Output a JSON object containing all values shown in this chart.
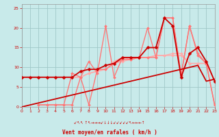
{
  "xlabel": "Vent moyen/en rafales ( km/h )",
  "xlim": [
    0,
    23
  ],
  "ylim": [
    0,
    26
  ],
  "yticks": [
    0,
    5,
    10,
    15,
    20,
    25
  ],
  "xticks": [
    0,
    1,
    2,
    3,
    4,
    5,
    6,
    7,
    8,
    9,
    10,
    11,
    12,
    13,
    14,
    15,
    16,
    17,
    18,
    19,
    20,
    21,
    22,
    23
  ],
  "bg_color": "#c8eaea",
  "grid_color": "#a0c8c8",
  "lines": [
    {
      "x": [
        0,
        1,
        2,
        3,
        4,
        5,
        6,
        7,
        8,
        9,
        10,
        11,
        12,
        13,
        14,
        15,
        16,
        17,
        18,
        19,
        20,
        21,
        22,
        23
      ],
      "y": [
        7.5,
        7.5,
        7.5,
        7.5,
        7.5,
        7.5,
        7.5,
        7.5,
        8.5,
        9.0,
        9.5,
        11.5,
        12.5,
        12.0,
        12.5,
        12.5,
        13.0,
        13.0,
        13.5,
        13.5,
        11.0,
        11.0,
        11.0,
        6.5
      ],
      "color": "#ffaaaa",
      "lw": 1.0,
      "marker": "D",
      "ms": 2.0
    },
    {
      "x": [
        0,
        1,
        2,
        3,
        4,
        5,
        6,
        7,
        8,
        9,
        10,
        11,
        12,
        13,
        14,
        15,
        16,
        17,
        18,
        19,
        20,
        21,
        22,
        23
      ],
      "y": [
        7.5,
        7.5,
        7.5,
        7.5,
        7.5,
        7.5,
        7.5,
        7.5,
        8.5,
        9.0,
        9.5,
        11.0,
        11.5,
        12.0,
        12.5,
        12.5,
        13.0,
        13.0,
        13.0,
        13.0,
        11.0,
        11.0,
        11.0,
        6.5
      ],
      "color": "#ffaaaa",
      "lw": 1.0,
      "marker": "D",
      "ms": 2.0
    },
    {
      "x": [
        2,
        3,
        4,
        5,
        6,
        7,
        8,
        9,
        10,
        11,
        12,
        13,
        14,
        15,
        16,
        17,
        18,
        19,
        20,
        21,
        22,
        23
      ],
      "y": [
        0.5,
        0.5,
        0.5,
        0.5,
        8.5,
        7.5,
        11.5,
        8.5,
        20.5,
        7.5,
        12.5,
        12.5,
        12.5,
        20.0,
        12.5,
        22.5,
        22.5,
        8.0,
        20.5,
        13.0,
        11.0,
        0.5
      ],
      "color": "#ff7777",
      "lw": 1.0,
      "marker": "D",
      "ms": 2.0
    },
    {
      "x": [
        2,
        3,
        4,
        5,
        6,
        7,
        8,
        9,
        10,
        11,
        12,
        13,
        14,
        15,
        16,
        17,
        18,
        19,
        20,
        21,
        22,
        23
      ],
      "y": [
        0.5,
        0.5,
        0.5,
        0.5,
        0.5,
        7.5,
        0.5,
        9.5,
        9.5,
        11.0,
        12.0,
        12.0,
        12.5,
        12.5,
        12.5,
        22.5,
        22.5,
        8.0,
        20.5,
        13.5,
        11.0,
        0.5
      ],
      "color": "#ff7777",
      "lw": 1.0,
      "marker": "D",
      "ms": 2.0
    },
    {
      "x": [
        0,
        1,
        2,
        3,
        4,
        5,
        6,
        7,
        8,
        9,
        10,
        11,
        12,
        13,
        14,
        15,
        16,
        17,
        18,
        19,
        20,
        21,
        22,
        23
      ],
      "y": [
        0.0,
        0.5,
        1.0,
        1.5,
        2.0,
        2.5,
        3.0,
        3.5,
        4.0,
        4.5,
        5.0,
        5.5,
        6.0,
        6.5,
        7.0,
        7.5,
        8.0,
        8.5,
        9.0,
        9.5,
        10.0,
        10.5,
        6.5,
        7.0
      ],
      "color": "#cc0000",
      "lw": 1.3,
      "marker": null,
      "ms": 0
    },
    {
      "x": [
        0,
        1,
        2,
        3,
        4,
        5,
        6,
        7,
        8,
        9,
        10,
        11,
        12,
        13,
        14,
        15,
        16,
        17,
        18,
        19,
        20,
        21,
        22,
        23
      ],
      "y": [
        7.5,
        7.5,
        7.5,
        7.5,
        7.5,
        7.5,
        7.5,
        9.0,
        9.5,
        9.5,
        10.5,
        11.0,
        12.5,
        12.5,
        12.5,
        15.0,
        15.0,
        22.5,
        20.5,
        7.5,
        13.5,
        15.0,
        11.5,
        6.5
      ],
      "color": "#cc0000",
      "lw": 1.3,
      "marker": "D",
      "ms": 2.5
    }
  ],
  "wind_symbols": "↙↖↖ ↑↖→→→↙↓↓↓↙↙↙↙↙↖←←←↑"
}
